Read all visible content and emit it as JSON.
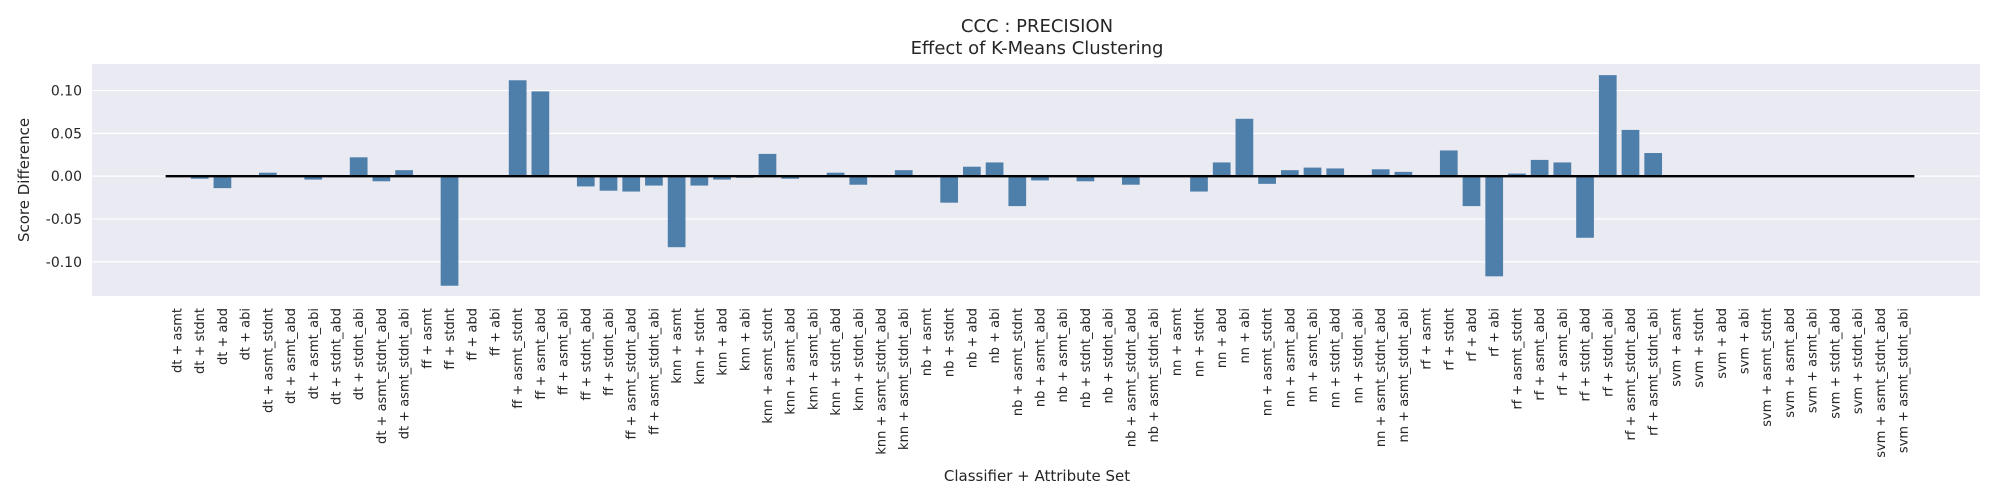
{
  "chart_data": {
    "type": "bar",
    "title": "CCC : PRECISION",
    "subtitle": "Effect of K-Means Clustering",
    "xlabel": "Classifier + Attribute Set",
    "ylabel": "Score Difference",
    "ylim": [
      -0.14,
      0.131
    ],
    "yticks": [
      "0.10",
      "0.05",
      "0.00",
      "-0.05",
      "-0.10"
    ],
    "ytick_values": [
      0.1,
      0.05,
      0.0,
      -0.05,
      -0.1
    ],
    "grid": true,
    "legend": "none",
    "bar_color": "#4e7faa",
    "background_color": "#eaeaf2",
    "zero_line_color": "#000000",
    "categories": [
      "dt + asmt",
      "dt + stdnt",
      "dt + abd",
      "dt + abi",
      "dt + asmt_stdnt",
      "dt + asmt_abd",
      "dt + asmt_abi",
      "dt + stdnt_abd",
      "dt + stdnt_abi",
      "dt + asmt_stdnt_abd",
      "dt + asmt_stdnt_abi",
      "ff + asmt",
      "ff + stdnt",
      "ff + abd",
      "ff + abi",
      "ff + asmt_stdnt",
      "ff + asmt_abd",
      "ff + asmt_abi",
      "ff + stdnt_abd",
      "ff + stdnt_abi",
      "ff + asmt_stdnt_abd",
      "ff + asmt_stdnt_abi",
      "knn + asmt",
      "knn + stdnt",
      "knn + abd",
      "knn + abi",
      "knn + asmt_stdnt",
      "knn + asmt_abd",
      "knn + asmt_abi",
      "knn + stdnt_abd",
      "knn + stdnt_abi",
      "knn + asmt_stdnt_abd",
      "knn + asmt_stdnt_abi",
      "nb + asmt",
      "nb + stdnt",
      "nb + abd",
      "nb + abi",
      "nb + asmt_stdnt",
      "nb + asmt_abd",
      "nb + asmt_abi",
      "nb + stdnt_abd",
      "nb + stdnt_abi",
      "nb + asmt_stdnt_abd",
      "nb + asmt_stdnt_abi",
      "nn + asmt",
      "nn + stdnt",
      "nn + abd",
      "nn + abi",
      "nn + asmt_stdnt",
      "nn + asmt_abd",
      "nn + asmt_abi",
      "nn + stdnt_abd",
      "nn + stdnt_abi",
      "nn + asmt_stdnt_abd",
      "nn + asmt_stdnt_abi",
      "rf + asmt",
      "rf + stdnt",
      "rf + abd",
      "rf + abi",
      "rf + asmt_stdnt",
      "rf + asmt_abd",
      "rf + asmt_abi",
      "rf + stdnt_abd",
      "rf + stdnt_abi",
      "rf + asmt_stdnt_abd",
      "rf + asmt_stdnt_abi",
      "svm + asmt",
      "svm + stdnt",
      "svm + abd",
      "svm + abi",
      "svm + asmt_stdnt",
      "svm + asmt_abd",
      "svm + asmt_abi",
      "svm + stdnt_abd",
      "svm + stdnt_abi",
      "svm + asmt_stdnt_abd",
      "svm + asmt_stdnt_abi"
    ],
    "values": [
      0.0,
      -0.003,
      -0.014,
      0.0,
      0.004,
      0.0,
      -0.004,
      0.0,
      0.022,
      -0.006,
      0.007,
      0.0,
      -0.128,
      0.0,
      0.0,
      0.112,
      0.099,
      0.0,
      -0.012,
      -0.017,
      -0.018,
      -0.011,
      -0.083,
      -0.011,
      -0.004,
      -0.002,
      0.026,
      -0.003,
      0.0,
      0.004,
      -0.01,
      0.0,
      0.007,
      0.0,
      -0.031,
      0.011,
      0.016,
      -0.035,
      -0.005,
      0.0,
      -0.006,
      0.0,
      -0.01,
      0.0,
      0.0,
      -0.018,
      0.016,
      0.067,
      -0.009,
      0.007,
      0.01,
      0.009,
      0.0,
      0.008,
      0.005,
      0.0,
      0.03,
      -0.035,
      -0.117,
      0.003,
      0.019,
      0.016,
      -0.072,
      0.118,
      0.054,
      0.027,
      0.0,
      0.0,
      0.0,
      0.0,
      0.0,
      0.0,
      0.0,
      0.0,
      0.0,
      0.0,
      0.0
    ]
  }
}
